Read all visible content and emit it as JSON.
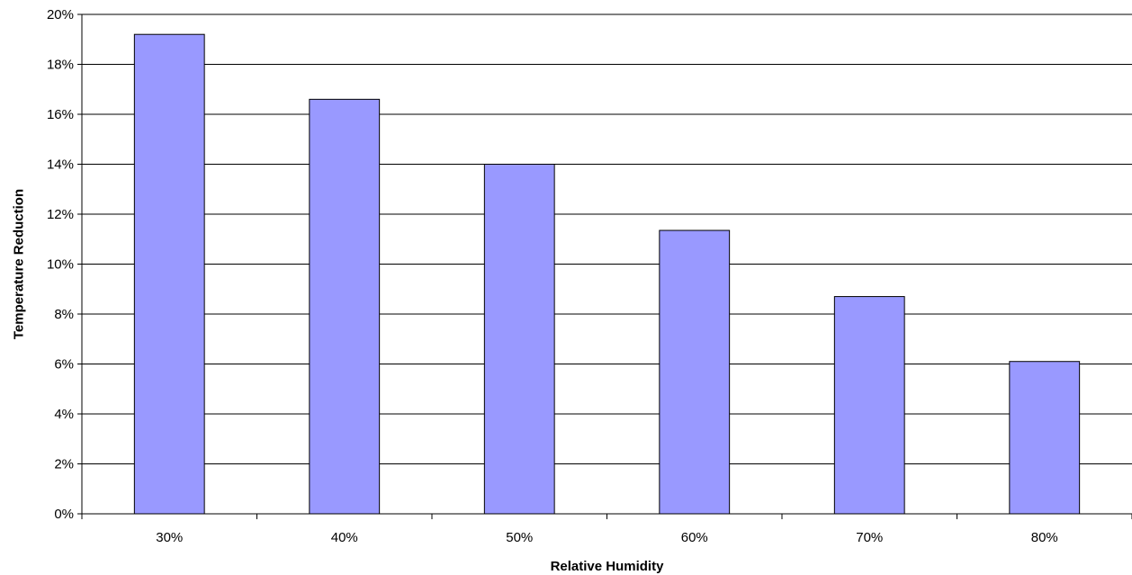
{
  "chart_data": {
    "type": "bar",
    "title": "",
    "xlabel": "Relative Humidity",
    "ylabel": "Temperature Reduction",
    "categories": [
      "30%",
      "40%",
      "50%",
      "60%",
      "70%",
      "80%"
    ],
    "values": [
      19.2,
      16.6,
      14.0,
      11.35,
      8.7,
      6.1
    ],
    "ylim": [
      0,
      20
    ],
    "y_ticks": [
      0,
      2,
      4,
      6,
      8,
      10,
      12,
      14,
      16,
      18,
      20
    ],
    "y_tick_labels": [
      "0%",
      "2%",
      "4%",
      "6%",
      "8%",
      "10%",
      "12%",
      "14%",
      "16%",
      "18%",
      "20%"
    ],
    "grid": "horizontal",
    "legend": "none",
    "colors": {
      "bar_fill": "#9999ff",
      "bar_stroke": "#000000",
      "grid": "#000000",
      "axis": "#000000"
    }
  }
}
